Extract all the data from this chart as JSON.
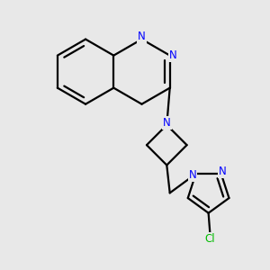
{
  "bg_color": "#e8e8e8",
  "atom_color_N": "#0000ff",
  "atom_color_C": "#000000",
  "atom_color_Cl": "#00bb00",
  "bond_color": "#000000",
  "bond_width": 1.6,
  "font_size_atom": 8.5,
  "fig_size": [
    3.0,
    3.0
  ],
  "dpi": 100,
  "xlim": [
    0.08,
    0.92
  ],
  "ylim": [
    0.08,
    0.95
  ]
}
